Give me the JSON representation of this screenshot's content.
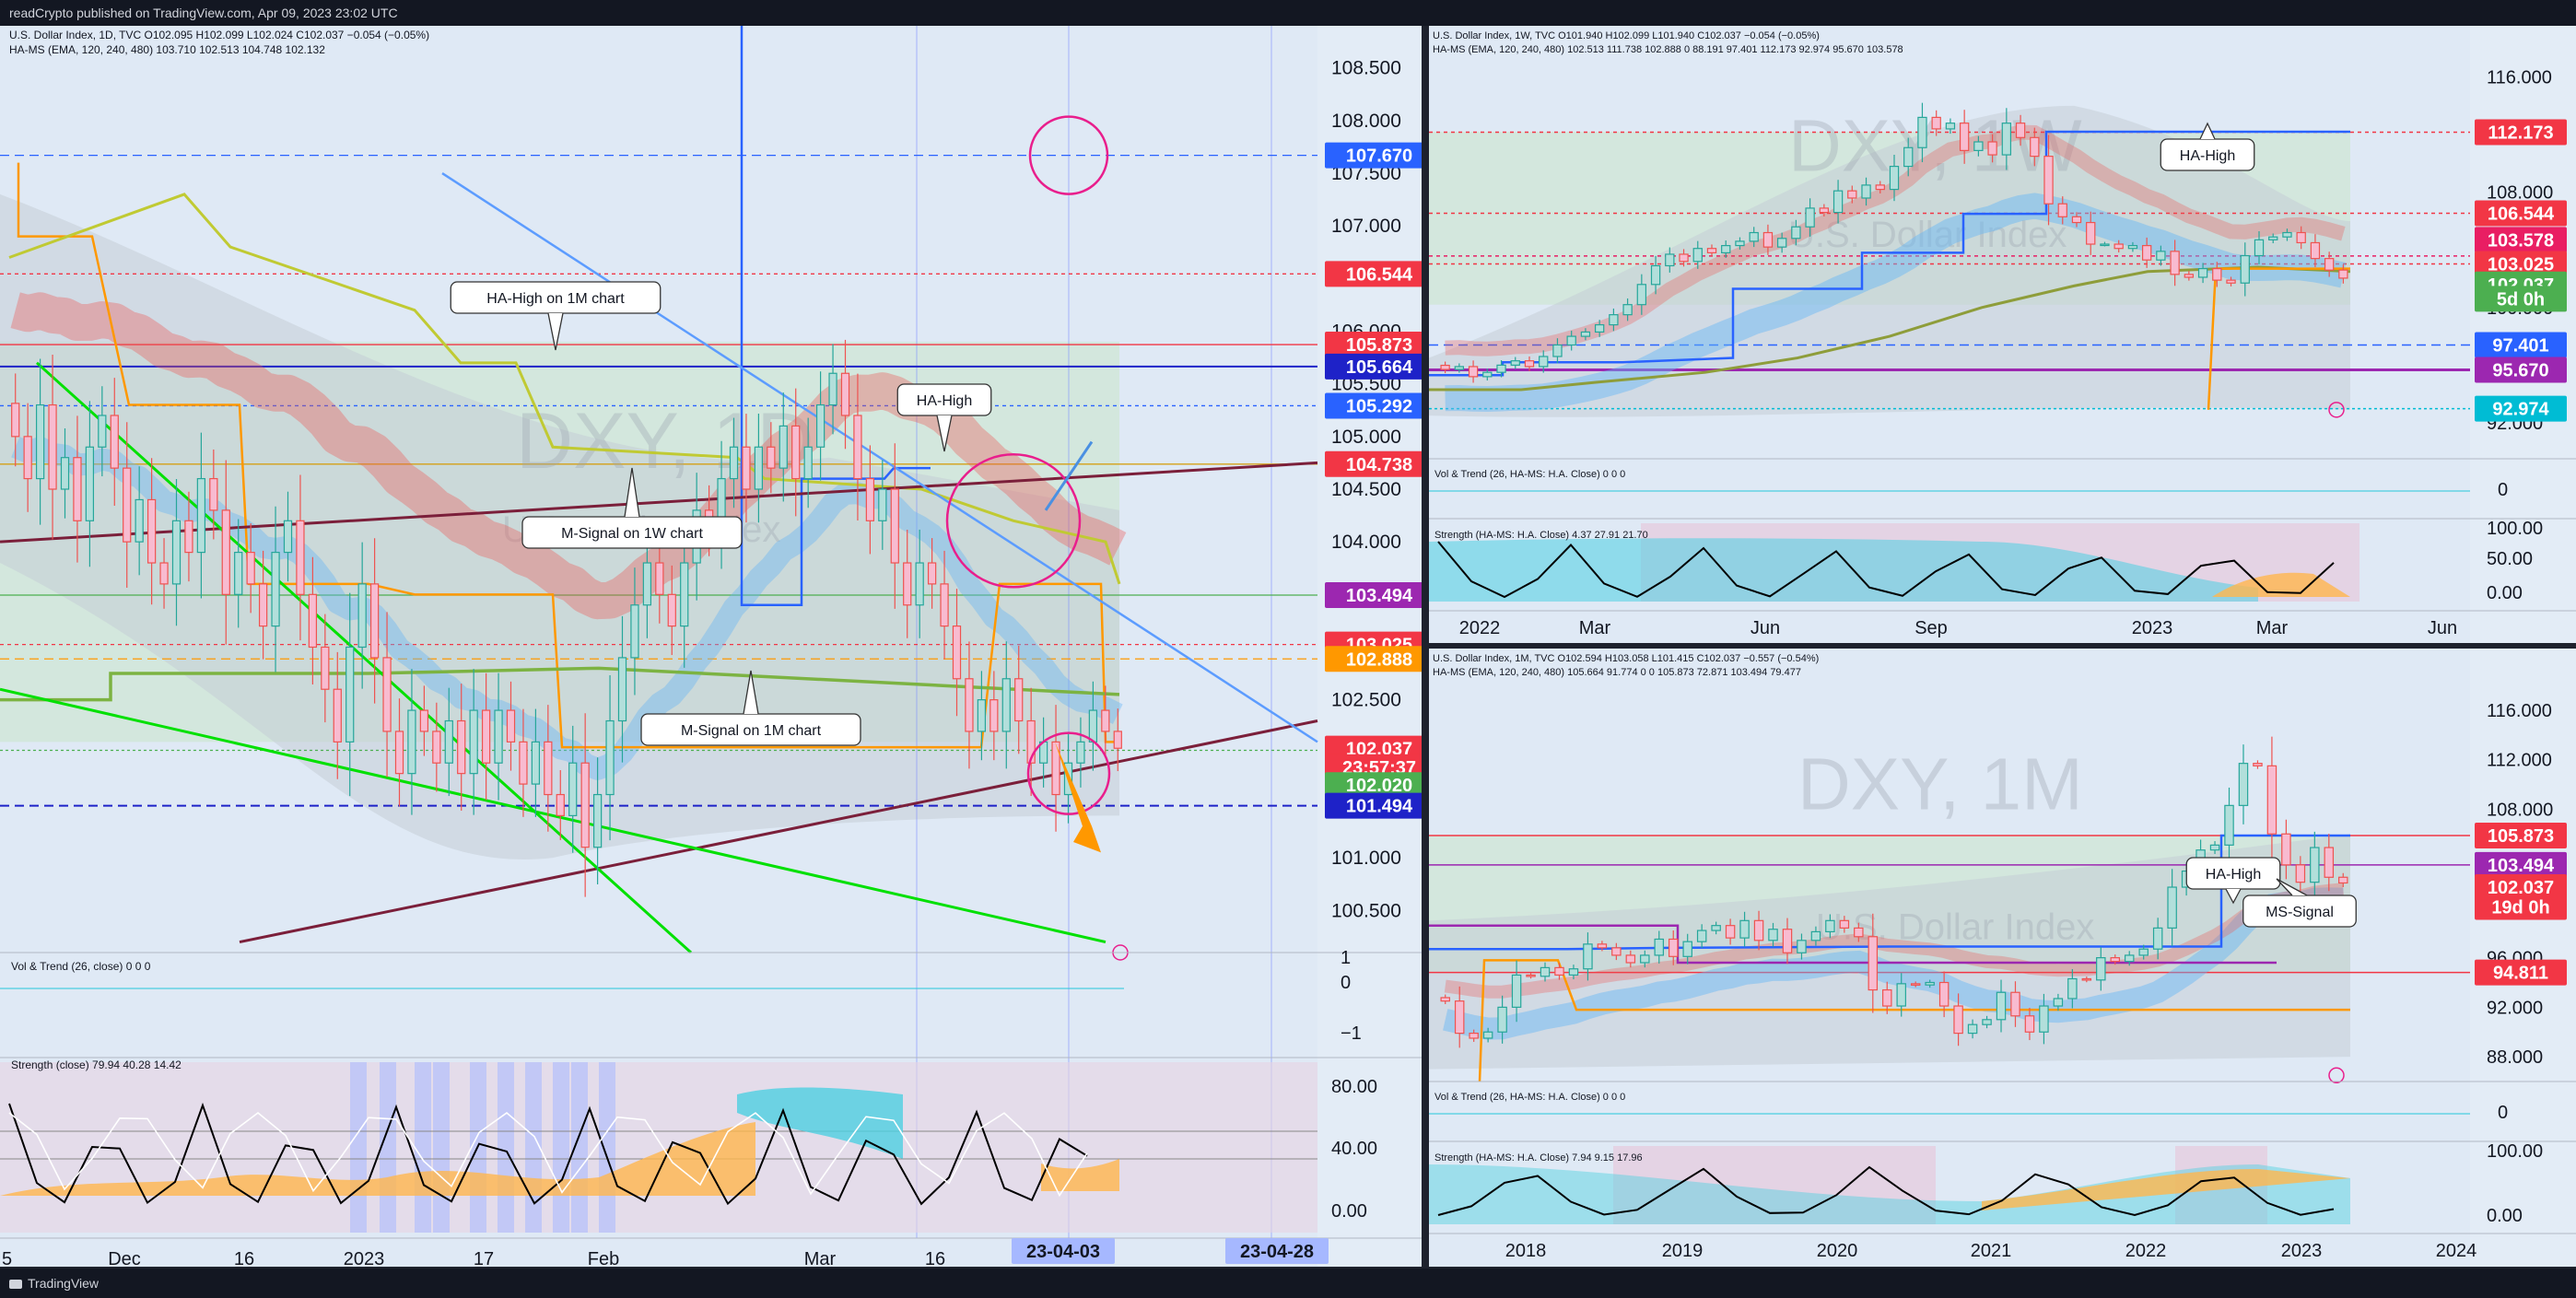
{
  "header": {
    "title": "readCrypto published on TradingView.com, Apr 09, 2023 23:02 UTC"
  },
  "footer": {
    "brand": "TradingView"
  },
  "colors": {
    "background": "#dfe9f5",
    "frame": "#1e222d",
    "up": "#26a69a",
    "down": "#ef5350",
    "price_label": "#f23645",
    "ha_high": "#1e22c8",
    "signal_orange": "#ff9800"
  },
  "chart_data": [
    {
      "type": "candlestick",
      "title": "U.S. Dollar Index, 1D, TVC",
      "ohlc_text": {
        "o": "O102.095",
        "h": "H102.099",
        "l": "L102.024",
        "c": "C102.037",
        "chg": "−0.054 (−0.05%)"
      },
      "indicator_text": {
        "name": "HA-MS (EMA, 120, 240, 480)",
        "v1": "103.710",
        "v2": "102.513",
        "v3": "104.748",
        "v4": "102.132"
      },
      "watermark": "DXY, 1D",
      "watermark_sub": "U.S. Dollar Index",
      "y_ticks": [
        "108.500",
        "108.000",
        "107.500",
        "107.000",
        "106.500",
        "106.000",
        "105.500",
        "105.000",
        "104.500",
        "104.000",
        "103.500",
        "103.000",
        "102.500",
        "102.000",
        "101.500",
        "101.000",
        "100.500"
      ],
      "x_ticks": [
        "5",
        "Dec",
        "16",
        "2023",
        "17",
        "Feb",
        "Mar",
        "16"
      ],
      "date_labels": [
        "23-04-03",
        "23-04-28"
      ],
      "price_labels": [
        {
          "value": "107.670",
          "color": "#2962ff"
        },
        {
          "value": "106.544",
          "color": "#f23645"
        },
        {
          "value": "105.873",
          "color": "#f23645"
        },
        {
          "value": "105.664",
          "color": "#1e22c8"
        },
        {
          "value": "105.292",
          "color": "#2962ff"
        },
        {
          "value": "104.738",
          "color": "#f23645"
        },
        {
          "value": "103.494",
          "color": "#9c27b0"
        },
        {
          "value": "103.025",
          "color": "#f23645"
        },
        {
          "value": "102.888",
          "color": "#ff9800"
        },
        {
          "value": "102.037",
          "color": "#f23645"
        },
        {
          "value": "23:57:37",
          "color": "#f23645"
        },
        {
          "value": "102.020",
          "color": "#4caf50"
        },
        {
          "value": "101.494",
          "color": "#1e22c8"
        }
      ],
      "annotations": [
        "HA-High on 1M chart",
        "HA-High",
        "M-Signal on 1W chart",
        "M-Signal on 1M chart"
      ],
      "panels": [
        {
          "title": "Vol & Trend (26, close)",
          "values": "0 0 0",
          "ticks": [
            "1",
            "0",
            "−1"
          ]
        },
        {
          "title": "Strength (close)",
          "values": [
            "79.94",
            "40.28",
            "14.42"
          ],
          "ticks": [
            "80.00",
            "40.00",
            "0.00"
          ]
        }
      ],
      "closes": [
        105.0,
        104.6,
        105.3,
        104.5,
        104.8,
        104.2,
        104.9,
        105.2,
        104.7,
        104.0,
        104.4,
        103.8,
        103.6,
        104.2,
        103.9,
        104.6,
        104.3,
        103.5,
        103.9,
        103.6,
        103.2,
        103.9,
        104.2,
        103.5,
        103.0,
        102.6,
        102.1,
        103.0,
        103.6,
        102.9,
        102.2,
        101.8,
        102.4,
        102.2,
        101.9,
        102.3,
        101.8,
        102.4,
        101.9,
        102.4,
        102.1,
        101.7,
        102.1,
        101.6,
        101.4,
        101.9,
        101.1,
        101.6,
        102.3,
        102.9,
        103.4,
        103.8,
        103.5,
        103.2,
        103.8,
        104.3,
        104.1,
        104.6,
        104.9,
        104.5,
        104.9,
        104.7,
        105.1,
        104.6,
        104.9,
        105.3,
        105.6,
        105.2,
        104.6,
        104.2,
        104.5,
        103.8,
        103.4,
        103.8,
        103.6,
        103.2,
        102.7,
        102.2,
        102.5,
        102.2,
        102.7,
        102.3,
        101.9,
        102.1,
        101.6,
        101.9,
        102.1,
        102.4,
        102.2,
        102.04
      ]
    },
    {
      "type": "candlestick",
      "title": "U.S. Dollar Index, 1W, TVC",
      "ohlc_text": {
        "o": "O101.940",
        "h": "H102.099",
        "l": "L101.940",
        "c": "C102.037",
        "chg": "−0.054 (−0.05%)"
      },
      "indicator_text": {
        "name": "HA-MS (EMA, 120, 240, 480)",
        "values": [
          "102.513",
          "111.738",
          "102.888",
          "0",
          "88.191",
          "97.401",
          "112.173",
          "92.974",
          "95.670",
          "103.578"
        ]
      },
      "watermark": "DXY, 1W",
      "watermark_sub": "U.S. Dollar Index",
      "y_ticks": [
        "116.000",
        "112.000",
        "108.000",
        "104.000",
        "100.000",
        "96.000",
        "92.000"
      ],
      "x_ticks": [
        "2022",
        "Mar",
        "Jun",
        "Sep",
        "2023",
        "Mar",
        "Jun"
      ],
      "price_labels": [
        {
          "value": "112.173",
          "color": "#f23645"
        },
        {
          "value": "106.544",
          "color": "#f23645"
        },
        {
          "value": "103.578",
          "color": "#e91e63"
        },
        {
          "value": "103.025",
          "color": "#f23645"
        },
        {
          "value": "102.037",
          "color": "#4caf50"
        },
        {
          "value": "5d 0h",
          "color": "#4caf50"
        },
        {
          "value": "97.401",
          "color": "#2962ff"
        },
        {
          "value": "95.670",
          "color": "#9c27b0"
        },
        {
          "value": "92.974",
          "color": "#00bcd4"
        }
      ],
      "annotations": [
        "HA-High"
      ],
      "panels": [
        {
          "title": "Vol & Trend (26, HA-MS: H.A. Close)",
          "values": "0 0 0",
          "ticks": [
            "0"
          ]
        },
        {
          "title": "Strength (HA-MS: H.A. Close)",
          "values": [
            "4.37",
            "27.91",
            "21.70"
          ],
          "ticks": [
            "100.00",
            "50.00",
            "0.00"
          ]
        }
      ],
      "closes": [
        95.7,
        95.9,
        95.2,
        95.5,
        96.0,
        96.3,
        95.9,
        96.6,
        97.4,
        98.0,
        98.3,
        98.8,
        99.5,
        100.2,
        101.6,
        102.9,
        103.7,
        103.2,
        104.1,
        103.8,
        104.3,
        104.6,
        105.2,
        104.2,
        104.8,
        105.6,
        106.9,
        106.6,
        108.1,
        107.6,
        108.5,
        108.2,
        109.8,
        111.1,
        113.2,
        112.4,
        112.8,
        110.9,
        111.5,
        110.6,
        112.8,
        111.8,
        110.5,
        107.2,
        106.3,
        105.9,
        104.4,
        104.4,
        104.1,
        104.3,
        103.3,
        103.9,
        102.3,
        102.1,
        102.7,
        101.9,
        101.7,
        103.6,
        104.7,
        104.9,
        105.2,
        104.5,
        103.4,
        102.6,
        102.04
      ]
    },
    {
      "type": "candlestick",
      "title": "U.S. Dollar Index, 1M, TVC",
      "ohlc_text": {
        "o": "O102.594",
        "h": "H103.058",
        "l": "L101.415",
        "c": "C102.037",
        "chg": "−0.557 (−0.54%)"
      },
      "indicator_text": {
        "name": "HA-MS (EMA, 120, 240, 480)",
        "values": [
          "105.664",
          "91.774",
          "0",
          "0",
          "105.873",
          "72.871",
          "103.494",
          "79.477"
        ]
      },
      "watermark": "DXY, 1M",
      "watermark_sub": "U.S. Dollar Index",
      "y_ticks": [
        "116.000",
        "112.000",
        "108.000",
        "104.000",
        "100.000",
        "96.000",
        "92.000",
        "88.000"
      ],
      "x_ticks": [
        "2018",
        "2019",
        "2020",
        "2021",
        "2022",
        "2023",
        "2024"
      ],
      "price_labels": [
        {
          "value": "105.873",
          "color": "#f23645"
        },
        {
          "value": "103.494",
          "color": "#9c27b0"
        },
        {
          "value": "102.037",
          "color": "#f23645"
        },
        {
          "value": "19d 0h",
          "color": "#f23645"
        },
        {
          "value": "94.811",
          "color": "#f23645"
        }
      ],
      "annotations": [
        "HA-High",
        "MS-Signal"
      ],
      "panels": [
        {
          "title": "Vol & Trend (26, HA-MS: H.A. Close)",
          "values": "0 0 0",
          "ticks": [
            "0"
          ]
        },
        {
          "title": "Strength (HA-MS: H.A. Close)",
          "values": [
            "7.94",
            "9.15",
            "17.96"
          ],
          "ticks": [
            "100.00",
            "0.00"
          ]
        }
      ],
      "closes": [
        92.5,
        89.9,
        89.5,
        90.0,
        92.0,
        94.6,
        94.5,
        95.2,
        94.6,
        95.1,
        97.1,
        96.8,
        96.2,
        95.6,
        96.2,
        97.5,
        96.1,
        97.3,
        98.2,
        98.6,
        97.6,
        99.0,
        97.4,
        98.3,
        96.4,
        97.4,
        98.1,
        99.0,
        98.4,
        97.7,
        93.4,
        92.1,
        93.9,
        93.8,
        94.0,
        92.1,
        89.9,
        90.6,
        91.0,
        93.2,
        91.3,
        90.0,
        92.1,
        92.7,
        94.3,
        94.2,
        96.0,
        95.7,
        96.2,
        96.7,
        98.4,
        101.7,
        103.0,
        104.7,
        105.1,
        108.3,
        111.7,
        111.5,
        106.0,
        103.5,
        102.1,
        104.9,
        102.5,
        102.04
      ]
    }
  ]
}
